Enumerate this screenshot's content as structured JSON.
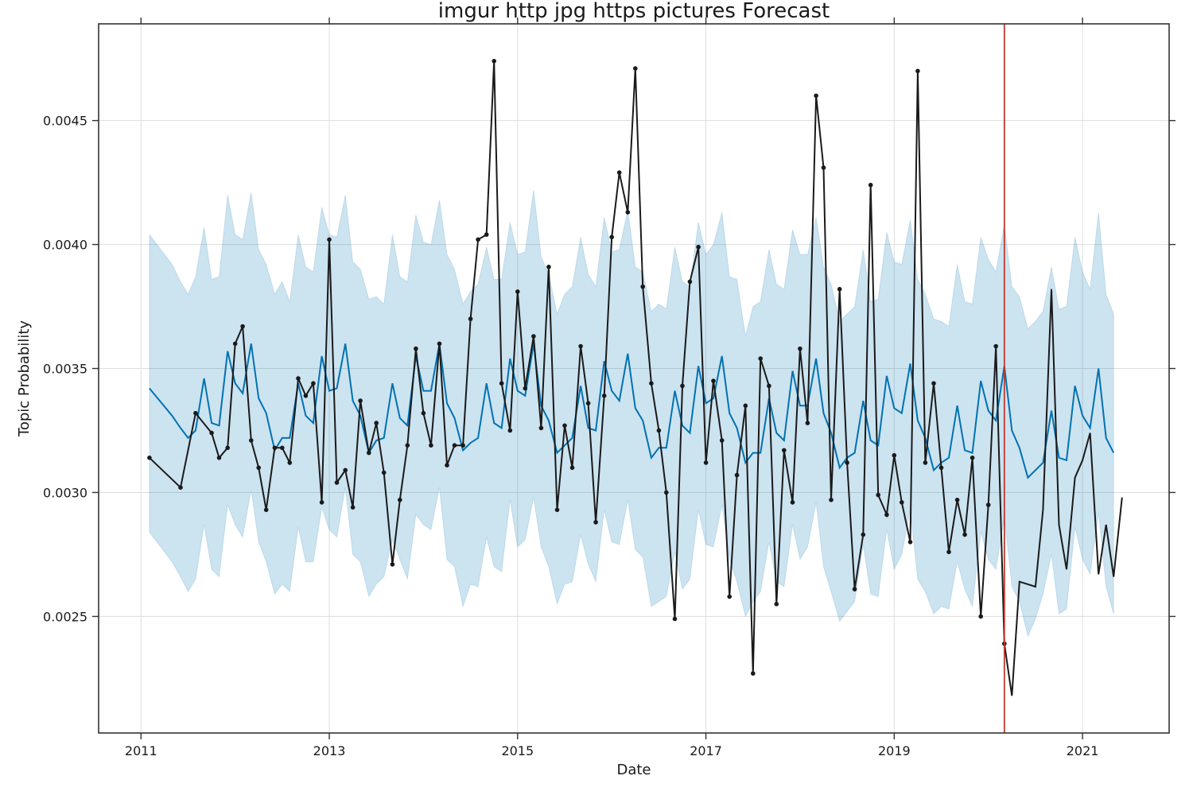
{
  "chart_data": {
    "type": "line",
    "title": "imgur http jpg https pictures Forecast",
    "xlabel": "Date",
    "ylabel": "Topic Probability",
    "xlim": [
      2010.55,
      2021.92
    ],
    "ylim": [
      0.00203,
      0.00489
    ],
    "x_ticks": [
      2011,
      2013,
      2015,
      2017,
      2019,
      2021
    ],
    "x_tick_labels": [
      "2011",
      "2013",
      "2015",
      "2017",
      "2019",
      "2021"
    ],
    "y_ticks": [
      0.0025,
      0.003,
      0.0035,
      0.004,
      0.0045
    ],
    "y_tick_labels": [
      "0.0025",
      "0.0030",
      "0.0035",
      "0.0040",
      "0.0045"
    ],
    "grid": true,
    "legend": "none",
    "changepoint_x": 2020.17,
    "colors": {
      "observed": "#1a1a1a",
      "forecast": "#0072b2",
      "interval": "#0072b2",
      "changepoint": "#c0392b"
    },
    "series": [
      {
        "role": "forecast",
        "x": [
          2011.09,
          2011.33,
          2011.42,
          2011.5,
          2011.58,
          2011.67,
          2011.75,
          2011.83,
          2011.92,
          2012.0,
          2012.08,
          2012.17,
          2012.25,
          2012.33,
          2012.42,
          2012.5,
          2012.58,
          2012.67,
          2012.75,
          2012.83,
          2012.92,
          2013.0,
          2013.08,
          2013.17,
          2013.25,
          2013.33,
          2013.42,
          2013.5,
          2013.58,
          2013.67,
          2013.75,
          2013.83,
          2013.92,
          2014.0,
          2014.08,
          2014.17,
          2014.25,
          2014.33,
          2014.42,
          2014.5,
          2014.58,
          2014.67,
          2014.75,
          2014.83,
          2014.92,
          2015.0,
          2015.08,
          2015.17,
          2015.25,
          2015.33,
          2015.42,
          2015.5,
          2015.58,
          2015.67,
          2015.75,
          2015.83,
          2015.92,
          2016.0,
          2016.08,
          2016.17,
          2016.25,
          2016.33,
          2016.42,
          2016.5,
          2016.58,
          2016.67,
          2016.75,
          2016.83,
          2016.92,
          2017.0,
          2017.08,
          2017.17,
          2017.25,
          2017.33,
          2017.42,
          2017.5,
          2017.58,
          2017.67,
          2017.75,
          2017.83,
          2017.92,
          2018.0,
          2018.08,
          2018.17,
          2018.25,
          2018.33,
          2018.42,
          2018.5,
          2018.58,
          2018.67,
          2018.75,
          2018.83,
          2018.92,
          2019.0,
          2019.08,
          2019.17,
          2019.25,
          2019.33,
          2019.42,
          2019.5,
          2019.58,
          2019.67,
          2019.75,
          2019.83,
          2019.92,
          2020.0,
          2020.08,
          2020.17,
          2020.25,
          2020.33,
          2020.42,
          2020.5,
          2020.58,
          2020.67,
          2020.75,
          2020.83,
          2020.92,
          2021.0,
          2021.08,
          2021.17,
          2021.25,
          2021.33
        ],
        "y": [
          0.00342,
          0.00331,
          0.00326,
          0.00322,
          0.00325,
          0.00346,
          0.00328,
          0.00327,
          0.00357,
          0.00344,
          0.0034,
          0.0036,
          0.00338,
          0.00332,
          0.00317,
          0.00322,
          0.00322,
          0.00344,
          0.00331,
          0.00328,
          0.00355,
          0.00341,
          0.00342,
          0.0036,
          0.00337,
          0.00331,
          0.00316,
          0.00321,
          0.00322,
          0.00344,
          0.0033,
          0.00327,
          0.00355,
          0.00341,
          0.00341,
          0.0036,
          0.00336,
          0.0033,
          0.00317,
          0.0032,
          0.00322,
          0.00344,
          0.00328,
          0.00326,
          0.00354,
          0.00341,
          0.00339,
          0.0036,
          0.00335,
          0.00329,
          0.00316,
          0.00319,
          0.00322,
          0.00343,
          0.00326,
          0.00325,
          0.00353,
          0.00341,
          0.00337,
          0.00356,
          0.00334,
          0.00329,
          0.00314,
          0.00318,
          0.00318,
          0.00341,
          0.00327,
          0.00324,
          0.00351,
          0.00336,
          0.00338,
          0.00355,
          0.00332,
          0.00326,
          0.00312,
          0.00316,
          0.00316,
          0.00338,
          0.00324,
          0.00321,
          0.00349,
          0.00335,
          0.00335,
          0.00354,
          0.00332,
          0.00324,
          0.0031,
          0.00314,
          0.00316,
          0.00337,
          0.00321,
          0.00319,
          0.00347,
          0.00334,
          0.00332,
          0.00352,
          0.00329,
          0.00322,
          0.00309,
          0.00312,
          0.00314,
          0.00335,
          0.00317,
          0.00316,
          0.00345,
          0.00333,
          0.00329,
          0.00351,
          0.00325,
          0.00318,
          0.00306,
          0.00309,
          0.00312,
          0.00333,
          0.00314,
          0.00313,
          0.00343,
          0.00331,
          0.00326,
          0.0035,
          0.00322,
          0.00316
        ],
        "lower": [
          0.00284,
          0.00272,
          0.00266,
          0.0026,
          0.00265,
          0.00287,
          0.00269,
          0.00266,
          0.00295,
          0.00287,
          0.00282,
          0.00301,
          0.0028,
          0.00272,
          0.00259,
          0.00263,
          0.0026,
          0.00286,
          0.00272,
          0.00272,
          0.00294,
          0.00285,
          0.00282,
          0.00302,
          0.00275,
          0.00272,
          0.00258,
          0.00263,
          0.00266,
          0.00281,
          0.00273,
          0.00265,
          0.00291,
          0.00287,
          0.00285,
          0.00302,
          0.00273,
          0.0027,
          0.00254,
          0.00263,
          0.00262,
          0.00282,
          0.0027,
          0.00268,
          0.00297,
          0.00278,
          0.00281,
          0.00298,
          0.00278,
          0.0027,
          0.00255,
          0.00263,
          0.00264,
          0.00283,
          0.00271,
          0.00264,
          0.00293,
          0.0028,
          0.00279,
          0.00297,
          0.00277,
          0.00274,
          0.00254,
          0.00256,
          0.00258,
          0.00276,
          0.00261,
          0.00265,
          0.00293,
          0.00279,
          0.00278,
          0.00295,
          0.00273,
          0.00264,
          0.0025,
          0.00256,
          0.0026,
          0.0028,
          0.00264,
          0.00262,
          0.00287,
          0.00273,
          0.00278,
          0.00296,
          0.0027,
          0.0026,
          0.00248,
          0.00252,
          0.00256,
          0.00279,
          0.00259,
          0.00258,
          0.00285,
          0.00269,
          0.00275,
          0.00293,
          0.00265,
          0.0026,
          0.00251,
          0.00254,
          0.00253,
          0.00272,
          0.00261,
          0.00254,
          0.00284,
          0.00273,
          0.00269,
          0.0029,
          0.00262,
          0.00256,
          0.00242,
          0.00249,
          0.00259,
          0.00275,
          0.00251,
          0.00253,
          0.00286,
          0.00273,
          0.00267,
          0.00292,
          0.00262,
          0.00251
        ],
        "upper": [
          0.00404,
          0.00392,
          0.00385,
          0.0038,
          0.00387,
          0.00407,
          0.00386,
          0.00387,
          0.0042,
          0.00404,
          0.00402,
          0.00421,
          0.00398,
          0.00392,
          0.0038,
          0.00385,
          0.00377,
          0.00404,
          0.00391,
          0.00389,
          0.00415,
          0.00404,
          0.00403,
          0.0042,
          0.00393,
          0.0039,
          0.00378,
          0.00379,
          0.00376,
          0.00404,
          0.00387,
          0.00385,
          0.00412,
          0.00401,
          0.004,
          0.00418,
          0.00396,
          0.0039,
          0.00376,
          0.00381,
          0.00384,
          0.00399,
          0.00386,
          0.00386,
          0.00409,
          0.00396,
          0.00397,
          0.00422,
          0.00395,
          0.00388,
          0.00372,
          0.0038,
          0.00383,
          0.00403,
          0.00388,
          0.00383,
          0.00411,
          0.00397,
          0.00398,
          0.00414,
          0.00391,
          0.00389,
          0.00373,
          0.00376,
          0.00374,
          0.00399,
          0.00385,
          0.00383,
          0.00409,
          0.00396,
          0.004,
          0.00413,
          0.00387,
          0.00386,
          0.00363,
          0.00375,
          0.00377,
          0.00398,
          0.00384,
          0.00382,
          0.00406,
          0.00396,
          0.00396,
          0.00411,
          0.00391,
          0.00384,
          0.00369,
          0.00372,
          0.00375,
          0.00398,
          0.00377,
          0.00378,
          0.00405,
          0.00393,
          0.00392,
          0.0041,
          0.00386,
          0.0038,
          0.0037,
          0.00369,
          0.00367,
          0.00392,
          0.00377,
          0.00376,
          0.00403,
          0.00394,
          0.00389,
          0.00408,
          0.00383,
          0.00379,
          0.00366,
          0.00369,
          0.00373,
          0.00391,
          0.00374,
          0.00375,
          0.00403,
          0.00389,
          0.00382,
          0.00413,
          0.0038,
          0.00372
        ]
      },
      {
        "role": "observed",
        "x": [
          2011.09,
          2011.42,
          2011.58,
          2011.75,
          2011.83,
          2011.92,
          2012.0,
          2012.08,
          2012.17,
          2012.25,
          2012.33,
          2012.42,
          2012.5,
          2012.58,
          2012.67,
          2012.75,
          2012.83,
          2012.92,
          2013.0,
          2013.08,
          2013.17,
          2013.25,
          2013.33,
          2013.42,
          2013.5,
          2013.58,
          2013.67,
          2013.75,
          2013.83,
          2013.92,
          2014.0,
          2014.08,
          2014.17,
          2014.25,
          2014.33,
          2014.42,
          2014.5,
          2014.58,
          2014.67,
          2014.75,
          2014.83,
          2014.92,
          2015.0,
          2015.08,
          2015.17,
          2015.25,
          2015.33,
          2015.42,
          2015.5,
          2015.58,
          2015.67,
          2015.75,
          2015.83,
          2015.92,
          2016.0,
          2016.08,
          2016.17,
          2016.25,
          2016.33,
          2016.42,
          2016.5,
          2016.58,
          2016.67,
          2016.75,
          2016.83,
          2016.92,
          2017.0,
          2017.08,
          2017.17,
          2017.25,
          2017.33,
          2017.42,
          2017.5,
          2017.58,
          2017.67,
          2017.75,
          2017.83,
          2017.92,
          2018.0,
          2018.08,
          2018.17,
          2018.25,
          2018.33,
          2018.42,
          2018.5,
          2018.58,
          2018.67,
          2018.75,
          2018.83,
          2018.92,
          2019.0,
          2019.08,
          2019.17,
          2019.25,
          2019.33,
          2019.42,
          2019.5,
          2019.58,
          2019.67,
          2019.75,
          2019.83,
          2019.92,
          2020.0,
          2020.08
        ],
        "y": [
          0.00314,
          0.00302,
          0.00332,
          0.00324,
          0.00314,
          0.00318,
          0.0036,
          0.00367,
          0.00321,
          0.0031,
          0.00293,
          0.00318,
          0.00318,
          0.00312,
          0.00346,
          0.00339,
          0.00344,
          0.00296,
          0.00402,
          0.00304,
          0.00309,
          0.00294,
          0.00337,
          0.00316,
          0.00328,
          0.00308,
          0.00271,
          0.00297,
          0.00319,
          0.00358,
          0.00332,
          0.00319,
          0.0036,
          0.00311,
          0.00319,
          0.00319,
          0.0037,
          0.00402,
          0.00404,
          0.00474,
          0.00344,
          0.00325,
          0.00381,
          0.00342,
          0.00363,
          0.00326,
          0.00391,
          0.00293,
          0.00327,
          0.0031,
          0.00359,
          0.00336,
          0.00288,
          0.00339,
          0.00403,
          0.00429,
          0.00413,
          0.00471,
          0.00383,
          0.00344,
          0.00325,
          0.003,
          0.00249,
          0.00343,
          0.00385,
          0.00399,
          0.00312,
          0.00345,
          0.00321,
          0.00258,
          0.00307,
          0.00335,
          0.00227,
          0.00354,
          0.00343,
          0.00255,
          0.00317,
          0.00296,
          0.00358,
          0.00328,
          0.0046,
          0.00431,
          0.00297,
          0.00382,
          0.00312,
          0.00261,
          0.00283,
          0.00424,
          0.00299,
          0.00291,
          0.00315,
          0.00296,
          0.0028,
          0.0047,
          0.00312,
          0.00344,
          0.0031,
          0.00276,
          0.00297,
          0.00283,
          0.00314,
          0.0025,
          0.00295,
          0.00359
        ],
        "markers": true
      },
      {
        "role": "observed-tail",
        "x": [
          2020.08,
          2020.17,
          2020.25,
          2020.33,
          2020.42,
          2020.5,
          2020.58,
          2020.67,
          2020.75,
          2020.83,
          2020.92,
          2021.0,
          2021.08,
          2021.17,
          2021.25,
          2021.33,
          2021.42
        ],
        "y": [
          0.00359,
          0.00239,
          0.00218,
          0.00264,
          0.00263,
          0.00262,
          0.00293,
          0.00382,
          0.00287,
          0.00269,
          0.00306,
          0.00313,
          0.00324,
          0.00267,
          0.00287,
          0.00266,
          0.00298
        ],
        "markers_at": [
          0.00239
        ]
      }
    ]
  }
}
